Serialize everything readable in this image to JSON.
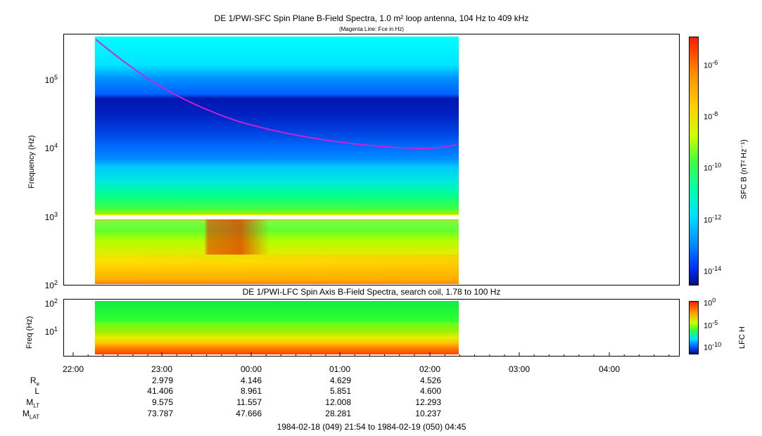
{
  "top_title": "DE 1/PWI-SFC  Spin Plane B-Field Spectra, 1.0 m² loop antenna, 104 Hz to 409 kHz",
  "top_subtitle": "(Magenta Line: Fce in Hz)",
  "bottom_title": "DE 1/PWI-LFC  Spin Axis B-Field Spectra, search coil, 1.78 to 100 Hz",
  "top_ylabel": "Frequency (Hz)",
  "bottom_ylabel": "Freq (Hz)",
  "top_cbar_label": "SFC B (nT² Hz⁻¹)",
  "bottom_cbar_label": "LFC H",
  "time_range": "1984-02-18 (049) 21:54 to 1984-02-19 (050) 04:45",
  "colors": {
    "magenta_line": "#d61fd6",
    "spectrogram_high": "#ff2a00",
    "spectrogram_low": "#0018a8"
  },
  "chart_data": [
    {
      "type": "heatmap",
      "title": "DE 1/PWI-SFC  Spin Plane B-Field Spectra, 1.0 m² loop antenna, 104 Hz to 409 kHz",
      "ylabel": "Frequency (Hz)",
      "y_scale": "log",
      "ylim": [
        100,
        409000
      ],
      "y_ticks": [
        "10²",
        "10³",
        "10⁴",
        "10⁵"
      ],
      "x_ticks": [
        "22:00",
        "23:00",
        "00:00",
        "01:00",
        "02:00",
        "03:00",
        "04:00"
      ],
      "data_coverage": [
        "22:15",
        "02:17"
      ],
      "colorbar": {
        "label": "SFC B (nT² Hz⁻¹)",
        "scale": "log",
        "ticks": [
          "10⁻⁶",
          "10⁻⁸",
          "10⁻¹⁰",
          "10⁻¹²",
          "10⁻¹⁴"
        ]
      },
      "series": [
        {
          "name": "Fce",
          "x": [
            "22:15",
            "22:30",
            "23:00",
            "23:30",
            "00:00",
            "00:30",
            "01:00",
            "01:30",
            "02:00",
            "02:17"
          ],
          "y": [
            360000,
            210000,
            90000,
            45000,
            24000,
            16000,
            12000,
            10000,
            9700,
            10500
          ]
        }
      ]
    },
    {
      "type": "heatmap",
      "title": "DE 1/PWI-LFC  Spin Axis B-Field Spectra, search coil, 1.78 to 100 Hz",
      "ylabel": "Freq (Hz)",
      "y_scale": "log",
      "ylim": [
        1.78,
        100
      ],
      "y_ticks": [
        "10¹",
        "10²"
      ],
      "colorbar": {
        "label": "LFC H",
        "scale": "log",
        "ticks": [
          "10⁰",
          "10⁻⁵",
          "10⁻¹⁰"
        ]
      }
    }
  ],
  "ephemeris": {
    "labels": [
      "R",
      "L",
      "M",
      "M"
    ],
    "label_subs": [
      "e",
      "",
      "LT",
      "LAT"
    ],
    "columns": [
      {
        "time": "23:00",
        "values": [
          "2.979",
          "41.406",
          "9.575",
          "73.787"
        ]
      },
      {
        "time": "00:00",
        "values": [
          "4.146",
          "8.961",
          "11.557",
          "47.666"
        ]
      },
      {
        "time": "01:00",
        "values": [
          "4.629",
          "5.851",
          "12.008",
          "28.281"
        ]
      },
      {
        "time": "02:00",
        "values": [
          "4.526",
          "4.600",
          "12.293",
          "10.237"
        ]
      }
    ]
  }
}
